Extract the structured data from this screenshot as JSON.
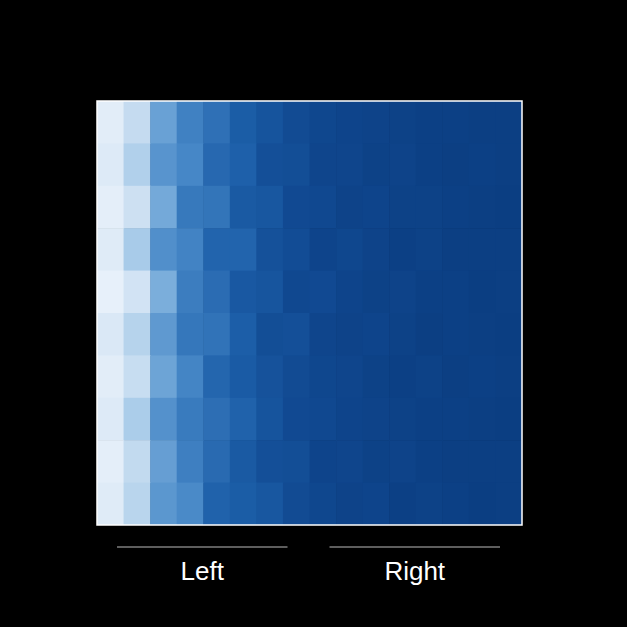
{
  "chart_data": {
    "type": "heatmap",
    "categories": [
      "Left",
      "Right"
    ],
    "tick_labels": "x",
    "zlim": [
      0,
      1
    ],
    "cells": [
      [
        0.04,
        0.15,
        0.45,
        0.58,
        0.66,
        0.76,
        0.82,
        0.88,
        0.91,
        0.93,
        0.94,
        0.95,
        0.96,
        0.96,
        0.97,
        0.97
      ],
      [
        0.06,
        0.22,
        0.5,
        0.55,
        0.7,
        0.74,
        0.85,
        0.86,
        0.92,
        0.92,
        0.95,
        0.94,
        0.96,
        0.97,
        0.96,
        0.97
      ],
      [
        0.03,
        0.12,
        0.42,
        0.62,
        0.64,
        0.78,
        0.8,
        0.89,
        0.9,
        0.94,
        0.93,
        0.95,
        0.95,
        0.96,
        0.97,
        0.98
      ],
      [
        0.05,
        0.25,
        0.52,
        0.57,
        0.72,
        0.72,
        0.84,
        0.87,
        0.93,
        0.91,
        0.94,
        0.96,
        0.95,
        0.97,
        0.97,
        0.97
      ],
      [
        0.02,
        0.1,
        0.4,
        0.6,
        0.68,
        0.79,
        0.81,
        0.9,
        0.89,
        0.93,
        0.95,
        0.94,
        0.96,
        0.96,
        0.98,
        0.97
      ],
      [
        0.07,
        0.2,
        0.48,
        0.63,
        0.65,
        0.75,
        0.86,
        0.85,
        0.92,
        0.94,
        0.93,
        0.95,
        0.97,
        0.96,
        0.97,
        0.98
      ],
      [
        0.04,
        0.14,
        0.44,
        0.56,
        0.71,
        0.77,
        0.83,
        0.88,
        0.91,
        0.92,
        0.95,
        0.96,
        0.95,
        0.97,
        0.96,
        0.97
      ],
      [
        0.06,
        0.24,
        0.51,
        0.61,
        0.67,
        0.73,
        0.82,
        0.89,
        0.9,
        0.93,
        0.94,
        0.95,
        0.96,
        0.96,
        0.97,
        0.98
      ],
      [
        0.03,
        0.16,
        0.46,
        0.59,
        0.69,
        0.78,
        0.85,
        0.86,
        0.93,
        0.92,
        0.95,
        0.94,
        0.96,
        0.97,
        0.97,
        0.97
      ],
      [
        0.05,
        0.19,
        0.49,
        0.54,
        0.73,
        0.76,
        0.8,
        0.88,
        0.91,
        0.94,
        0.93,
        0.96,
        0.95,
        0.96,
        0.98,
        0.97
      ]
    ]
  }
}
